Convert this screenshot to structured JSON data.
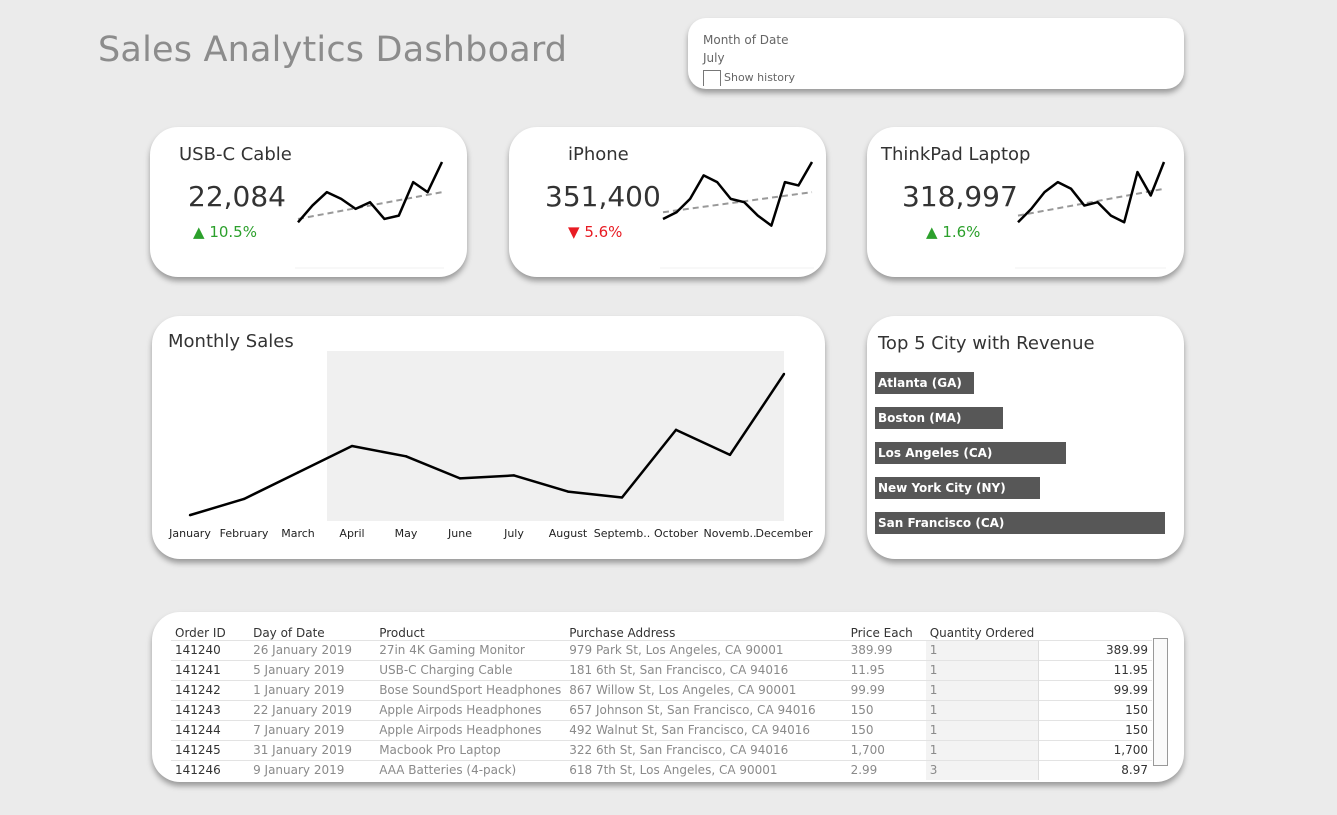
{
  "title": "Sales Analytics Dashboard",
  "filter": {
    "label": "Month of Date",
    "value": "July",
    "checkbox_label": "Show history",
    "checked": false
  },
  "kpis": [
    {
      "title": "USB-C Cable",
      "value": "22,084",
      "change": "10.5%",
      "direction": "up",
      "arrow": "▲",
      "spark": [
        0.1,
        0.35,
        0.55,
        0.45,
        0.3,
        0.4,
        0.15,
        0.2,
        0.7,
        0.55,
        1.0
      ],
      "trend": [
        0.15,
        0.55
      ]
    },
    {
      "title": "iPhone",
      "value": "351,400",
      "change": "5.6%",
      "direction": "down",
      "arrow": "▼",
      "spark": [
        0.15,
        0.25,
        0.45,
        0.8,
        0.7,
        0.45,
        0.4,
        0.2,
        0.05,
        0.7,
        0.65,
        1.0
      ],
      "trend": [
        0.25,
        0.55
      ]
    },
    {
      "title": "ThinkPad Laptop",
      "value": "318,997",
      "change": "1.6%",
      "direction": "up",
      "arrow": "▲",
      "spark": [
        0.1,
        0.3,
        0.55,
        0.7,
        0.6,
        0.35,
        0.4,
        0.2,
        0.1,
        0.85,
        0.5,
        1.0
      ],
      "trend": [
        0.2,
        0.6
      ]
    }
  ],
  "monthly_sales": {
    "title": "Monthly Sales",
    "months": [
      "January",
      "February",
      "March",
      "April",
      "May",
      "June",
      "July",
      "August",
      "Septemb..",
      "October",
      "Novemb..",
      "December"
    ]
  },
  "top_cities": {
    "title": "Top 5 City with Revenue",
    "cities": [
      {
        "name": "Atlanta (GA)",
        "share": 0.34
      },
      {
        "name": "Boston (MA)",
        "share": 0.44
      },
      {
        "name": "Los Angeles (CA)",
        "share": 0.66
      },
      {
        "name": "New York City (NY)",
        "share": 0.57
      },
      {
        "name": "San Francisco (CA)",
        "share": 1.0
      }
    ]
  },
  "chart_data": {
    "type": "line",
    "title": "Monthly Sales",
    "categories": [
      "January",
      "February",
      "March",
      "April",
      "May",
      "June",
      "July",
      "August",
      "Septemb..",
      "October",
      "Novemb..",
      "December"
    ],
    "values": [
      0.04,
      0.15,
      0.33,
      0.51,
      0.44,
      0.29,
      0.31,
      0.2,
      0.16,
      0.62,
      0.45,
      1.0
    ],
    "note_scale": "relative to December peak; no y-axis shown",
    "grid": false
  },
  "orders": {
    "columns": [
      "Order ID",
      "Day of Date",
      "Product",
      "Purchase Address",
      "Price Each",
      "Quantity Ordered",
      ""
    ],
    "rows": [
      [
        "141240",
        "26 January 2019",
        "27in 4K Gaming Monitor",
        "979 Park St, Los Angeles, CA 90001",
        "389.99",
        "1",
        "389.99"
      ],
      [
        "141241",
        "5 January 2019",
        "USB-C Charging Cable",
        "181 6th St, San Francisco, CA 94016",
        "11.95",
        "1",
        "11.95"
      ],
      [
        "141242",
        "1 January 2019",
        "Bose SoundSport Headphones",
        "867 Willow St, Los Angeles, CA 90001",
        "99.99",
        "1",
        "99.99"
      ],
      [
        "141243",
        "22 January 2019",
        "Apple Airpods Headphones",
        "657 Johnson St, San Francisco, CA 94016",
        "150",
        "1",
        "150"
      ],
      [
        "141244",
        "7 January 2019",
        "Apple Airpods Headphones",
        "492 Walnut St, San Francisco, CA 94016",
        "150",
        "1",
        "150"
      ],
      [
        "141245",
        "31 January 2019",
        "Macbook Pro Laptop",
        "322 6th St, San Francisco, CA 94016",
        "1,700",
        "1",
        "1,700"
      ],
      [
        "141246",
        "9 January 2019",
        "AAA Batteries (4-pack)",
        "618 7th St, Los Angeles, CA 90001",
        "2.99",
        "3",
        "8.97"
      ]
    ]
  },
  "colors": {
    "up": "#2ca02c",
    "down": "#e81b23",
    "bar": "#575757",
    "line": "#000000",
    "trend": "#999999",
    "area": "#f0f0f0"
  }
}
